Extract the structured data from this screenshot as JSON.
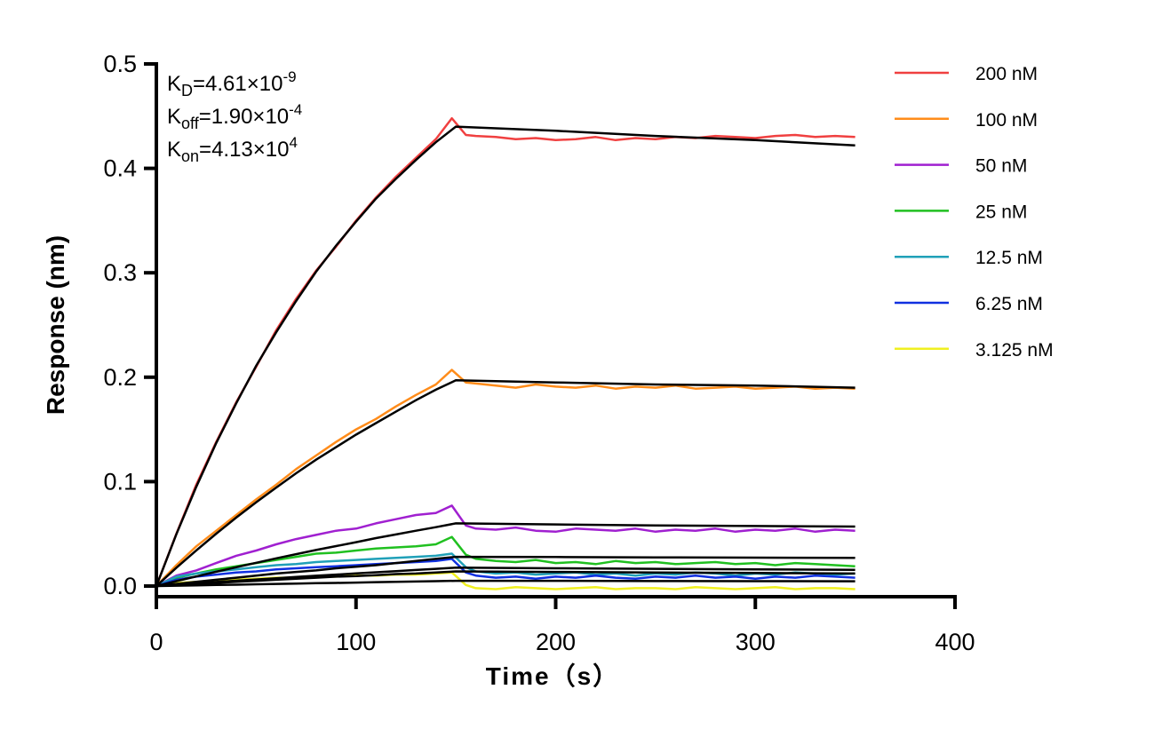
{
  "chart_data": {
    "type": "line",
    "xlabel": "Time（s）",
    "ylabel": "Response (nm)",
    "xlim": [
      0,
      400
    ],
    "ylim": [
      0,
      0.5
    ],
    "xticks": [
      "0",
      "100",
      "200",
      "300",
      "400"
    ],
    "yticks": [
      "0.0",
      "0.1",
      "0.2",
      "0.3",
      "0.4",
      "0.5"
    ],
    "grid": false,
    "legend_position": "right",
    "annotations": [
      {
        "base": "K",
        "sub": "D",
        "value": "=4.61×10",
        "exp": "-9"
      },
      {
        "base": "K",
        "sub": "off",
        "value": "=1.90×10",
        "exp": "-4"
      },
      {
        "base": "K",
        "sub": "on",
        "value": "=4.13×10",
        "exp": "4"
      }
    ],
    "measured_x": [
      0,
      10,
      20,
      30,
      40,
      50,
      60,
      70,
      80,
      90,
      100,
      110,
      120,
      130,
      140,
      148,
      155,
      160,
      170,
      180,
      190,
      200,
      210,
      220,
      230,
      240,
      250,
      260,
      270,
      280,
      290,
      300,
      310,
      320,
      330,
      340,
      350
    ],
    "fit_x": [
      0,
      10,
      20,
      30,
      40,
      50,
      60,
      70,
      80,
      90,
      100,
      110,
      120,
      130,
      140,
      150,
      200,
      250,
      300,
      350
    ],
    "fit_color": "#000000",
    "series": [
      {
        "name": "200 nM",
        "color": "#f04040",
        "values": [
          0,
          0.05,
          0.097,
          0.138,
          0.176,
          0.21,
          0.245,
          0.275,
          0.302,
          0.325,
          0.35,
          0.372,
          0.392,
          0.41,
          0.428,
          0.448,
          0.432,
          0.431,
          0.43,
          0.428,
          0.429,
          0.427,
          0.428,
          0.43,
          0.427,
          0.429,
          0.428,
          0.43,
          0.429,
          0.431,
          0.43,
          0.429,
          0.431,
          0.432,
          0.43,
          0.431,
          0.43
        ],
        "fit": [
          0,
          0.0496,
          0.095,
          0.137,
          0.175,
          0.211,
          0.243,
          0.273,
          0.301,
          0.326,
          0.349,
          0.371,
          0.39,
          0.408,
          0.425,
          0.44,
          0.436,
          0.431,
          0.427,
          0.422
        ]
      },
      {
        "name": "100 nM",
        "color": "#ff8c1a",
        "values": [
          0,
          0.02,
          0.038,
          0.053,
          0.068,
          0.083,
          0.097,
          0.112,
          0.125,
          0.138,
          0.15,
          0.16,
          0.172,
          0.183,
          0.193,
          0.207,
          0.195,
          0.194,
          0.192,
          0.19,
          0.193,
          0.191,
          0.19,
          0.192,
          0.189,
          0.191,
          0.19,
          0.192,
          0.189,
          0.19,
          0.191,
          0.189,
          0.19,
          0.191,
          0.189,
          0.19,
          0.189
        ],
        "fit": [
          0,
          0.0175,
          0.0341,
          0.0502,
          0.0656,
          0.0803,
          0.0943,
          0.108,
          0.121,
          0.133,
          0.145,
          0.156,
          0.167,
          0.178,
          0.188,
          0.197,
          0.195,
          0.193,
          0.192,
          0.19
        ]
      },
      {
        "name": "50 nM",
        "color": "#a020d0",
        "values": [
          0,
          0.01,
          0.015,
          0.022,
          0.029,
          0.034,
          0.04,
          0.045,
          0.049,
          0.053,
          0.055,
          0.06,
          0.064,
          0.068,
          0.07,
          0.077,
          0.058,
          0.055,
          0.054,
          0.056,
          0.053,
          0.052,
          0.055,
          0.054,
          0.053,
          0.055,
          0.052,
          0.054,
          0.053,
          0.055,
          0.052,
          0.054,
          0.053,
          0.055,
          0.052,
          0.054,
          0.053
        ],
        "fit": [
          0,
          0.0047,
          0.0092,
          0.0137,
          0.018,
          0.0223,
          0.0265,
          0.0305,
          0.0345,
          0.0383,
          0.042,
          0.0459,
          0.0494,
          0.053,
          0.0564,
          0.06,
          0.059,
          0.058,
          0.0575,
          0.057
        ]
      },
      {
        "name": "25 nM",
        "color": "#20c020",
        "values": [
          0,
          0.008,
          0.012,
          0.016,
          0.019,
          0.022,
          0.025,
          0.028,
          0.031,
          0.032,
          0.034,
          0.036,
          0.037,
          0.038,
          0.04,
          0.047,
          0.03,
          0.026,
          0.024,
          0.023,
          0.025,
          0.022,
          0.023,
          0.021,
          0.024,
          0.022,
          0.023,
          0.021,
          0.022,
          0.023,
          0.021,
          0.022,
          0.02,
          0.022,
          0.021,
          0.02,
          0.019
        ],
        "fit": [
          0,
          0.002,
          0.004,
          0.006,
          0.008,
          0.01,
          0.012,
          0.0135,
          0.015,
          0.017,
          0.0185,
          0.02,
          0.022,
          0.024,
          0.026,
          0.028,
          0.0278,
          0.0275,
          0.0272,
          0.027
        ]
      },
      {
        "name": "12.5 nM",
        "color": "#20a0b8",
        "values": [
          0,
          0.009,
          0.012,
          0.014,
          0.016,
          0.018,
          0.02,
          0.021,
          0.023,
          0.024,
          0.025,
          0.026,
          0.027,
          0.028,
          0.029,
          0.031,
          0.018,
          0.014,
          0.012,
          0.013,
          0.011,
          0.012,
          0.013,
          0.011,
          0.012,
          0.01,
          0.012,
          0.011,
          0.013,
          0.012,
          0.01,
          0.012,
          0.011,
          0.013,
          0.012,
          0.011,
          0.012
        ],
        "fit": [
          0,
          0.0013,
          0.0026,
          0.0039,
          0.0051,
          0.0063,
          0.0075,
          0.0087,
          0.0099,
          0.011,
          0.0121,
          0.0132,
          0.0143,
          0.0154,
          0.0165,
          0.0176,
          0.017,
          0.0165,
          0.016,
          0.0155
        ]
      },
      {
        "name": "6.25 nM",
        "color": "#1030e0",
        "values": [
          0,
          0.006,
          0.009,
          0.011,
          0.013,
          0.014,
          0.016,
          0.017,
          0.018,
          0.019,
          0.02,
          0.021,
          0.022,
          0.023,
          0.024,
          0.026,
          0.013,
          0.01,
          0.008,
          0.009,
          0.007,
          0.009,
          0.008,
          0.01,
          0.008,
          0.007,
          0.009,
          0.008,
          0.01,
          0.008,
          0.009,
          0.007,
          0.009,
          0.008,
          0.01,
          0.009,
          0.008
        ],
        "fit": [
          0,
          0.001,
          0.002,
          0.003,
          0.004,
          0.005,
          0.006,
          0.007,
          0.008,
          0.009,
          0.0095,
          0.0105,
          0.0115,
          0.012,
          0.013,
          0.014,
          0.0135,
          0.013,
          0.0125,
          0.012
        ]
      },
      {
        "name": "3.125 nM",
        "color": "#f0f020",
        "values": [
          0,
          0.003,
          0.004,
          0.005,
          0.006,
          0.007,
          0.008,
          0.008,
          0.009,
          0.009,
          0.01,
          0.01,
          0.011,
          0.011,
          0.012,
          0.013,
          0.001,
          -0.002,
          -0.003,
          -0.001,
          -0.002,
          -0.003,
          -0.002,
          -0.001,
          -0.003,
          -0.002,
          -0.002,
          -0.003,
          -0.001,
          -0.002,
          -0.003,
          -0.002,
          -0.001,
          -0.003,
          -0.002,
          -0.002,
          -0.003
        ],
        "fit": [
          0,
          0.0003,
          0.0007,
          0.001,
          0.0013,
          0.0017,
          0.002,
          0.0023,
          0.0027,
          0.003,
          0.0033,
          0.0037,
          0.004,
          0.0043,
          0.0047,
          0.005,
          0.005,
          0.0048,
          0.0047,
          0.0046
        ]
      }
    ]
  }
}
